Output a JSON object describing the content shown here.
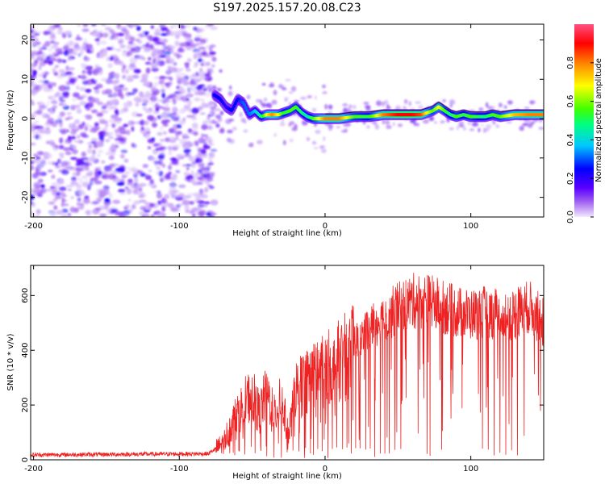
{
  "title": "S197.2025.157.20.08.C23",
  "chart_data": [
    {
      "type": "heatmap",
      "xlabel": "Height of straight line (km)",
      "ylabel": "Frequency (Hz)",
      "xlim": [
        -202,
        150
      ],
      "ylim": [
        -25,
        24
      ],
      "xticks": [
        -200,
        -100,
        0,
        100
      ],
      "yticks": [
        -20,
        -10,
        0,
        10,
        20
      ],
      "grid": false,
      "colorbar": {
        "label": "Normalized spectral amplitude",
        "range": [
          0,
          1
        ],
        "ticks": [
          0.0,
          0.2,
          0.4,
          0.6,
          0.8
        ],
        "tick_labels": [
          "0.0",
          "0.2",
          "0.4",
          "0.6",
          "0.8"
        ],
        "colors": [
          "#f0e8ff",
          "#a060f0",
          "#5a00ff",
          "#0000ff",
          "#00c8ff",
          "#00ff80",
          "#40ff00",
          "#ffff00",
          "#ff8000",
          "#ff0000",
          "#ff5080"
        ]
      },
      "noise_region": {
        "x": [
          -202,
          -76
        ],
        "amplitude": 0.2
      },
      "ridge": {
        "x": [
          -76,
          -72,
          -68,
          -64,
          -60,
          -56,
          -52,
          -48,
          -44,
          -40,
          -36,
          -32,
          -28,
          -24,
          -20,
          -16,
          -12,
          -8,
          -4,
          0,
          10,
          20,
          30,
          40,
          50,
          60,
          66,
          70,
          74,
          78,
          82,
          86,
          90,
          95,
          100,
          105,
          110,
          115,
          120,
          130,
          140,
          150
        ],
        "y": [
          6,
          5,
          3,
          2,
          5,
          4,
          1,
          2,
          0.5,
          1,
          1,
          1,
          1.5,
          2,
          3,
          1.5,
          0.5,
          0,
          0,
          0,
          0,
          0.5,
          0.5,
          1,
          1,
          1,
          1,
          1.5,
          2,
          3,
          2,
          1,
          0.5,
          1,
          0.5,
          0.5,
          0.5,
          1,
          0.5,
          1,
          1,
          1
        ],
        "amplitude": [
          0.3,
          0.3,
          0.25,
          0.3,
          0.3,
          0.35,
          0.35,
          0.4,
          0.5,
          0.7,
          0.8,
          0.7,
          0.55,
          0.6,
          0.6,
          0.5,
          0.45,
          0.6,
          0.7,
          0.8,
          0.8,
          0.6,
          0.55,
          0.8,
          0.9,
          0.9,
          0.85,
          0.7,
          0.6,
          0.7,
          0.6,
          0.5,
          0.6,
          0.55,
          0.6,
          0.55,
          0.5,
          0.6,
          0.6,
          0.75,
          0.8,
          0.8
        ]
      }
    },
    {
      "type": "line",
      "xlabel": "Height of straight line (km)",
      "ylabel": "SNR (10 * v/v)",
      "xlim": [
        -202,
        150
      ],
      "ylim": [
        0,
        710
      ],
      "xticks": [
        -200,
        -100,
        0,
        100
      ],
      "yticks": [
        0,
        200,
        400,
        600
      ],
      "grid": false,
      "color": "#ee2222",
      "trend": {
        "x": [
          -202,
          -140,
          -80,
          -70,
          -65,
          -60,
          -55,
          -50,
          -45,
          -40,
          -35,
          -30,
          -25,
          -20,
          -15,
          -10,
          -5,
          0,
          5,
          10,
          15,
          20,
          25,
          30,
          35,
          40,
          50,
          60,
          70,
          80,
          90,
          100,
          110,
          120,
          130,
          140,
          150
        ],
        "y": [
          18,
          20,
          22,
          60,
          120,
          170,
          210,
          240,
          170,
          250,
          160,
          220,
          90,
          260,
          280,
          300,
          310,
          330,
          350,
          370,
          390,
          420,
          450,
          480,
          500,
          520,
          550,
          580,
          580,
          560,
          540,
          530,
          540,
          530,
          530,
          560,
          500
        ]
      },
      "dips": [
        -62,
        -55,
        -48,
        -44,
        -40,
        -35,
        -30,
        -26,
        -22,
        -18,
        -14,
        -10,
        -8,
        -5,
        -2,
        2,
        5,
        8,
        12,
        15,
        18,
        21,
        24,
        28,
        31,
        34,
        38,
        41,
        44,
        48,
        52,
        70,
        72,
        80,
        108,
        112,
        116,
        120,
        124,
        128,
        132
      ]
    }
  ]
}
